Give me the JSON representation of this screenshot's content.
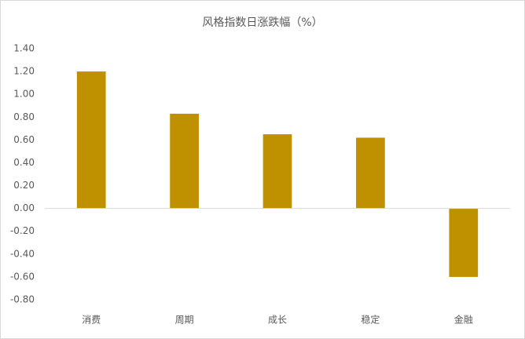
{
  "chart_data": {
    "type": "bar",
    "title": "风格指数日涨跌幅（%）",
    "categories": [
      "消费",
      "周期",
      "成长",
      "稳定",
      "金融"
    ],
    "values": [
      1.2,
      0.83,
      0.65,
      0.62,
      -0.6
    ],
    "color": "#bf9000",
    "ylim": [
      -0.8,
      1.4
    ],
    "yticks": [
      {
        "value": -0.8,
        "label": "-0.80"
      },
      {
        "value": -0.6,
        "label": "-0.60"
      },
      {
        "value": -0.4,
        "label": "-0.40"
      },
      {
        "value": -0.2,
        "label": "-0.20"
      },
      {
        "value": 0,
        "label": "0.00"
      },
      {
        "value": 0.2,
        "label": "0.20"
      },
      {
        "value": 0.4,
        "label": "0.40"
      },
      {
        "value": 0.6,
        "label": "0.60"
      },
      {
        "value": 0.8,
        "label": "0.80"
      },
      {
        "value": 1.0,
        "label": "1.00"
      },
      {
        "value": 1.2,
        "label": "1.20"
      },
      {
        "value": 1.4,
        "label": "1.40"
      }
    ],
    "grid": false
  }
}
